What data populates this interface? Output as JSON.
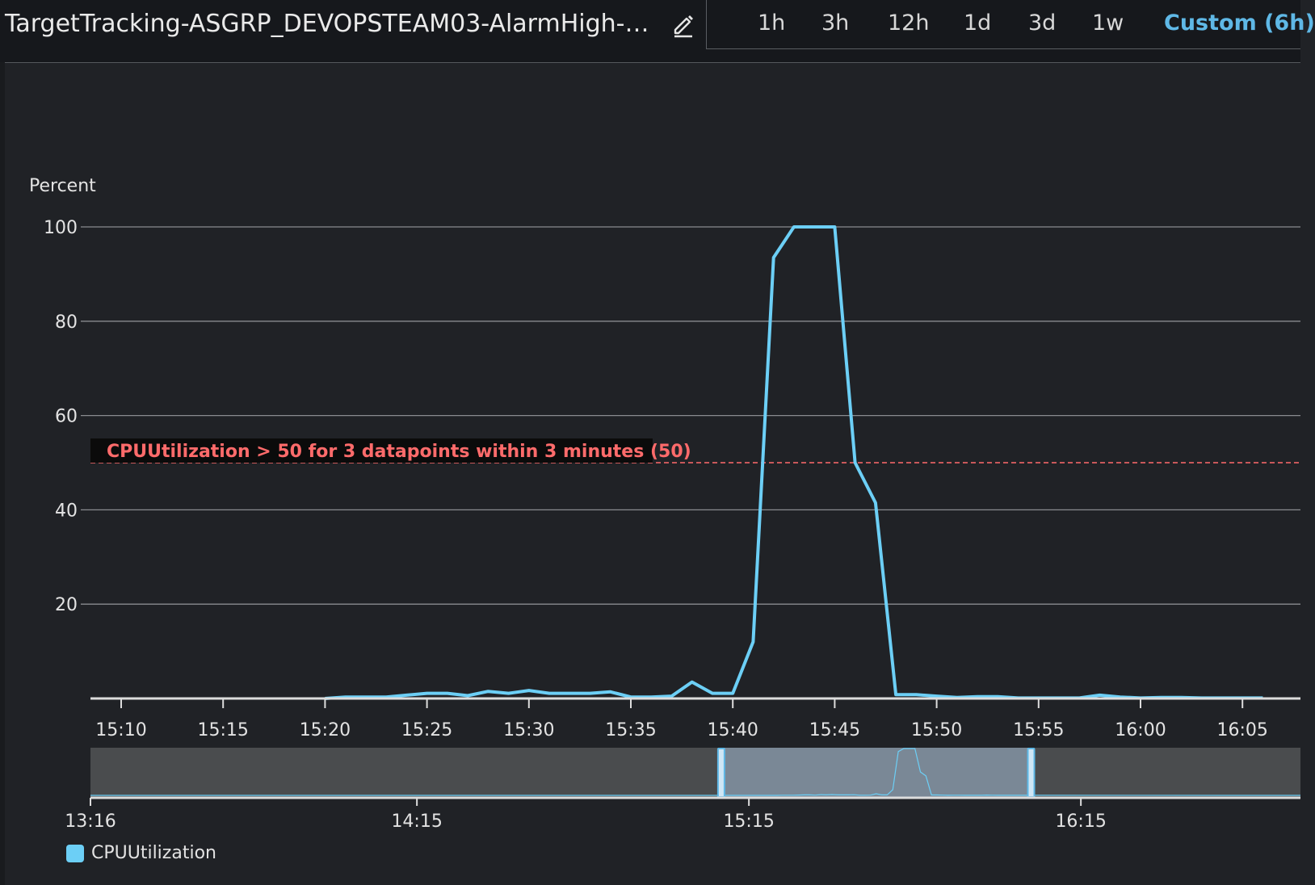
{
  "header": {
    "title": "TargetTracking-ASGRP_DEVOPSTEAM03-AlarmHigh-…",
    "time_ranges": [
      "1h",
      "3h",
      "12h",
      "1d",
      "3d",
      "1w",
      "Custom (6h)"
    ],
    "active_range": "Custom (6h)"
  },
  "chart_data": {
    "type": "line",
    "ylabel": "Percent",
    "ylim": [
      0,
      100
    ],
    "yticks": [
      "100",
      "80",
      "60",
      "40",
      "20"
    ],
    "xticks": [
      "15:10",
      "15:15",
      "15:20",
      "15:25",
      "15:30",
      "15:35",
      "15:40",
      "15:45",
      "15:50",
      "15:55",
      "16:00",
      "16:05"
    ],
    "grid": true,
    "series": [
      {
        "name": "CPUUtilization",
        "color": "#6ccff6",
        "x": [
          "15:20",
          "15:21",
          "15:22",
          "15:23",
          "15:24",
          "15:25",
          "15:26",
          "15:27",
          "15:28",
          "15:29",
          "15:30",
          "15:31",
          "15:32",
          "15:33",
          "15:34",
          "15:35",
          "15:36",
          "15:37",
          "15:38",
          "15:39",
          "15:40",
          "15:41",
          "15:42",
          "15:43",
          "15:44",
          "15:45",
          "15:46",
          "15:47",
          "15:48",
          "15:49",
          "15:50",
          "15:51",
          "15:52",
          "15:53",
          "15:54",
          "15:55",
          "15:56",
          "15:57",
          "15:58",
          "15:59",
          "16:00",
          "16:01",
          "16:02",
          "16:03",
          "16:04",
          "16:05",
          "16:06"
        ],
        "values": [
          0,
          0.3,
          0.3,
          0.3,
          0.7,
          1.1,
          1.1,
          0.6,
          1.5,
          1.1,
          1.7,
          1.1,
          1.1,
          1.1,
          1.4,
          0.3,
          0.3,
          0.5,
          3.5,
          1.1,
          1.1,
          12,
          93.5,
          100,
          100,
          100,
          50,
          41.5,
          0.8,
          0.8,
          0.5,
          0.2,
          0.4,
          0.4,
          0.1,
          0.1,
          0.1,
          0.1,
          0.7,
          0.3,
          0.1,
          0.2,
          0.2,
          0.1,
          0.1,
          0.1,
          0.1
        ]
      }
    ],
    "threshold": {
      "value": 50,
      "label": "CPUUtilization > 50 for 3 datapoints within 3 minutes (50)",
      "color": "#ff6b6b"
    },
    "overview": {
      "xticks": [
        "13:16",
        "14:15",
        "15:15",
        "16:15"
      ],
      "selection": [
        "15:10",
        "16:06"
      ]
    }
  },
  "legend": {
    "label": "CPUUtilization",
    "color": "#6ccff6"
  }
}
